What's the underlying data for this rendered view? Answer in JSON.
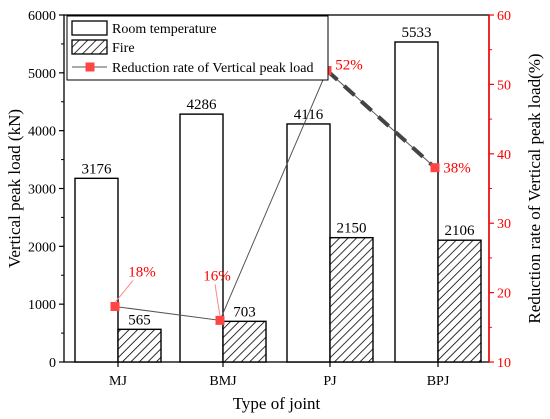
{
  "chart_data": {
    "type": "bar",
    "categories": [
      "MJ",
      "BMJ",
      "PJ",
      "BPJ"
    ],
    "series": [
      {
        "name": "Room temperature",
        "axis": "left",
        "values": [
          3176,
          4286,
          4116,
          5533
        ],
        "labels": [
          "3176",
          "4286",
          "4116",
          "5533"
        ]
      },
      {
        "name": "Fire",
        "axis": "left",
        "values": [
          565,
          703,
          2150,
          2106
        ],
        "labels": [
          "565",
          "703",
          "2150",
          "2106"
        ]
      },
      {
        "name": "Reduction rate of Vertical peak load",
        "axis": "right",
        "type": "line",
        "values": [
          18,
          16,
          52,
          38
        ],
        "labels": [
          "18%",
          "16%",
          "52%",
          "38%"
        ]
      }
    ],
    "xlabel": "Type of joint",
    "ylabel": "Vertical peak load (kN)",
    "y2label": "Reduction rate of Vertical peak load(%)",
    "ylim": [
      0,
      6000
    ],
    "y2lim": [
      10,
      60
    ],
    "yticks": [
      "0",
      "1000",
      "2000",
      "3000",
      "4000",
      "5000",
      "6000"
    ],
    "y2ticks": [
      "10",
      "20",
      "30",
      "40",
      "50",
      "60"
    ],
    "legend_position": "top-left",
    "colors": {
      "line": "#ff0000",
      "markers": "#ff4444",
      "right_axis": "#ff0000",
      "trend": "#444444"
    }
  }
}
